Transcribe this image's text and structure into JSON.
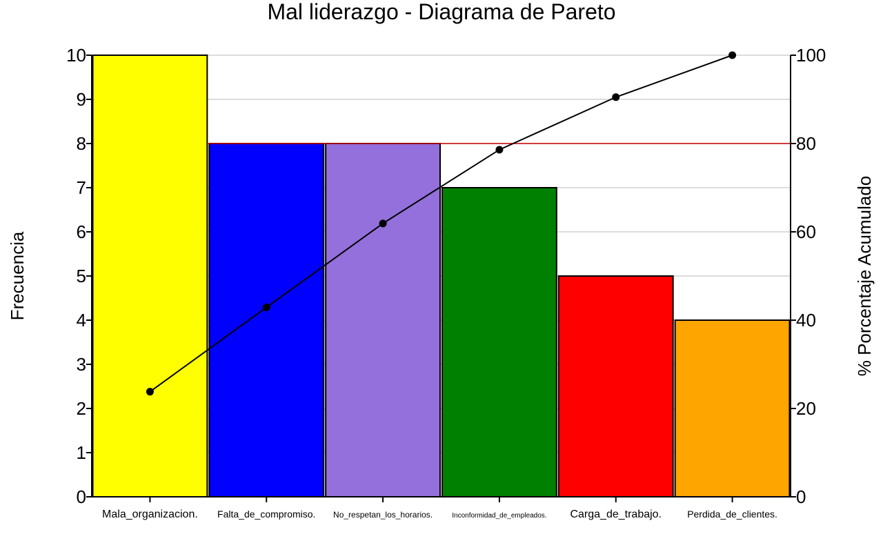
{
  "chart_data": {
    "type": "bar",
    "title": "Mal liderazgo - Diagrama de Pareto",
    "ylabel": "Frecuencia",
    "y2label": "% Porcentaje Acumulado",
    "categories": [
      "Mala_organizacion.",
      "Falta_de_compromiso.",
      "No_respetan_los_horarios.",
      "Inconformidad_de_empleados.",
      "Carga_de_trabajo.",
      "Perdida_de_clientes."
    ],
    "values": [
      10,
      8,
      8,
      7,
      5,
      4
    ],
    "bar_colors": [
      "#ffff00",
      "#0000ff",
      "#9370db",
      "#008000",
      "#ff0000",
      "#ffa500"
    ],
    "cumulative_percent": [
      23.8,
      42.9,
      61.9,
      78.6,
      90.5,
      100
    ],
    "line_color": "#000000",
    "threshold_percent": 80,
    "threshold_color": "#cc0000",
    "ylim": [
      0,
      10
    ],
    "yticks": [
      0,
      1,
      2,
      3,
      4,
      5,
      6,
      7,
      8,
      9,
      10
    ],
    "y2lim": [
      0,
      100
    ],
    "y2ticks": [
      0,
      20,
      40,
      60,
      80,
      100
    ],
    "grid": true
  }
}
